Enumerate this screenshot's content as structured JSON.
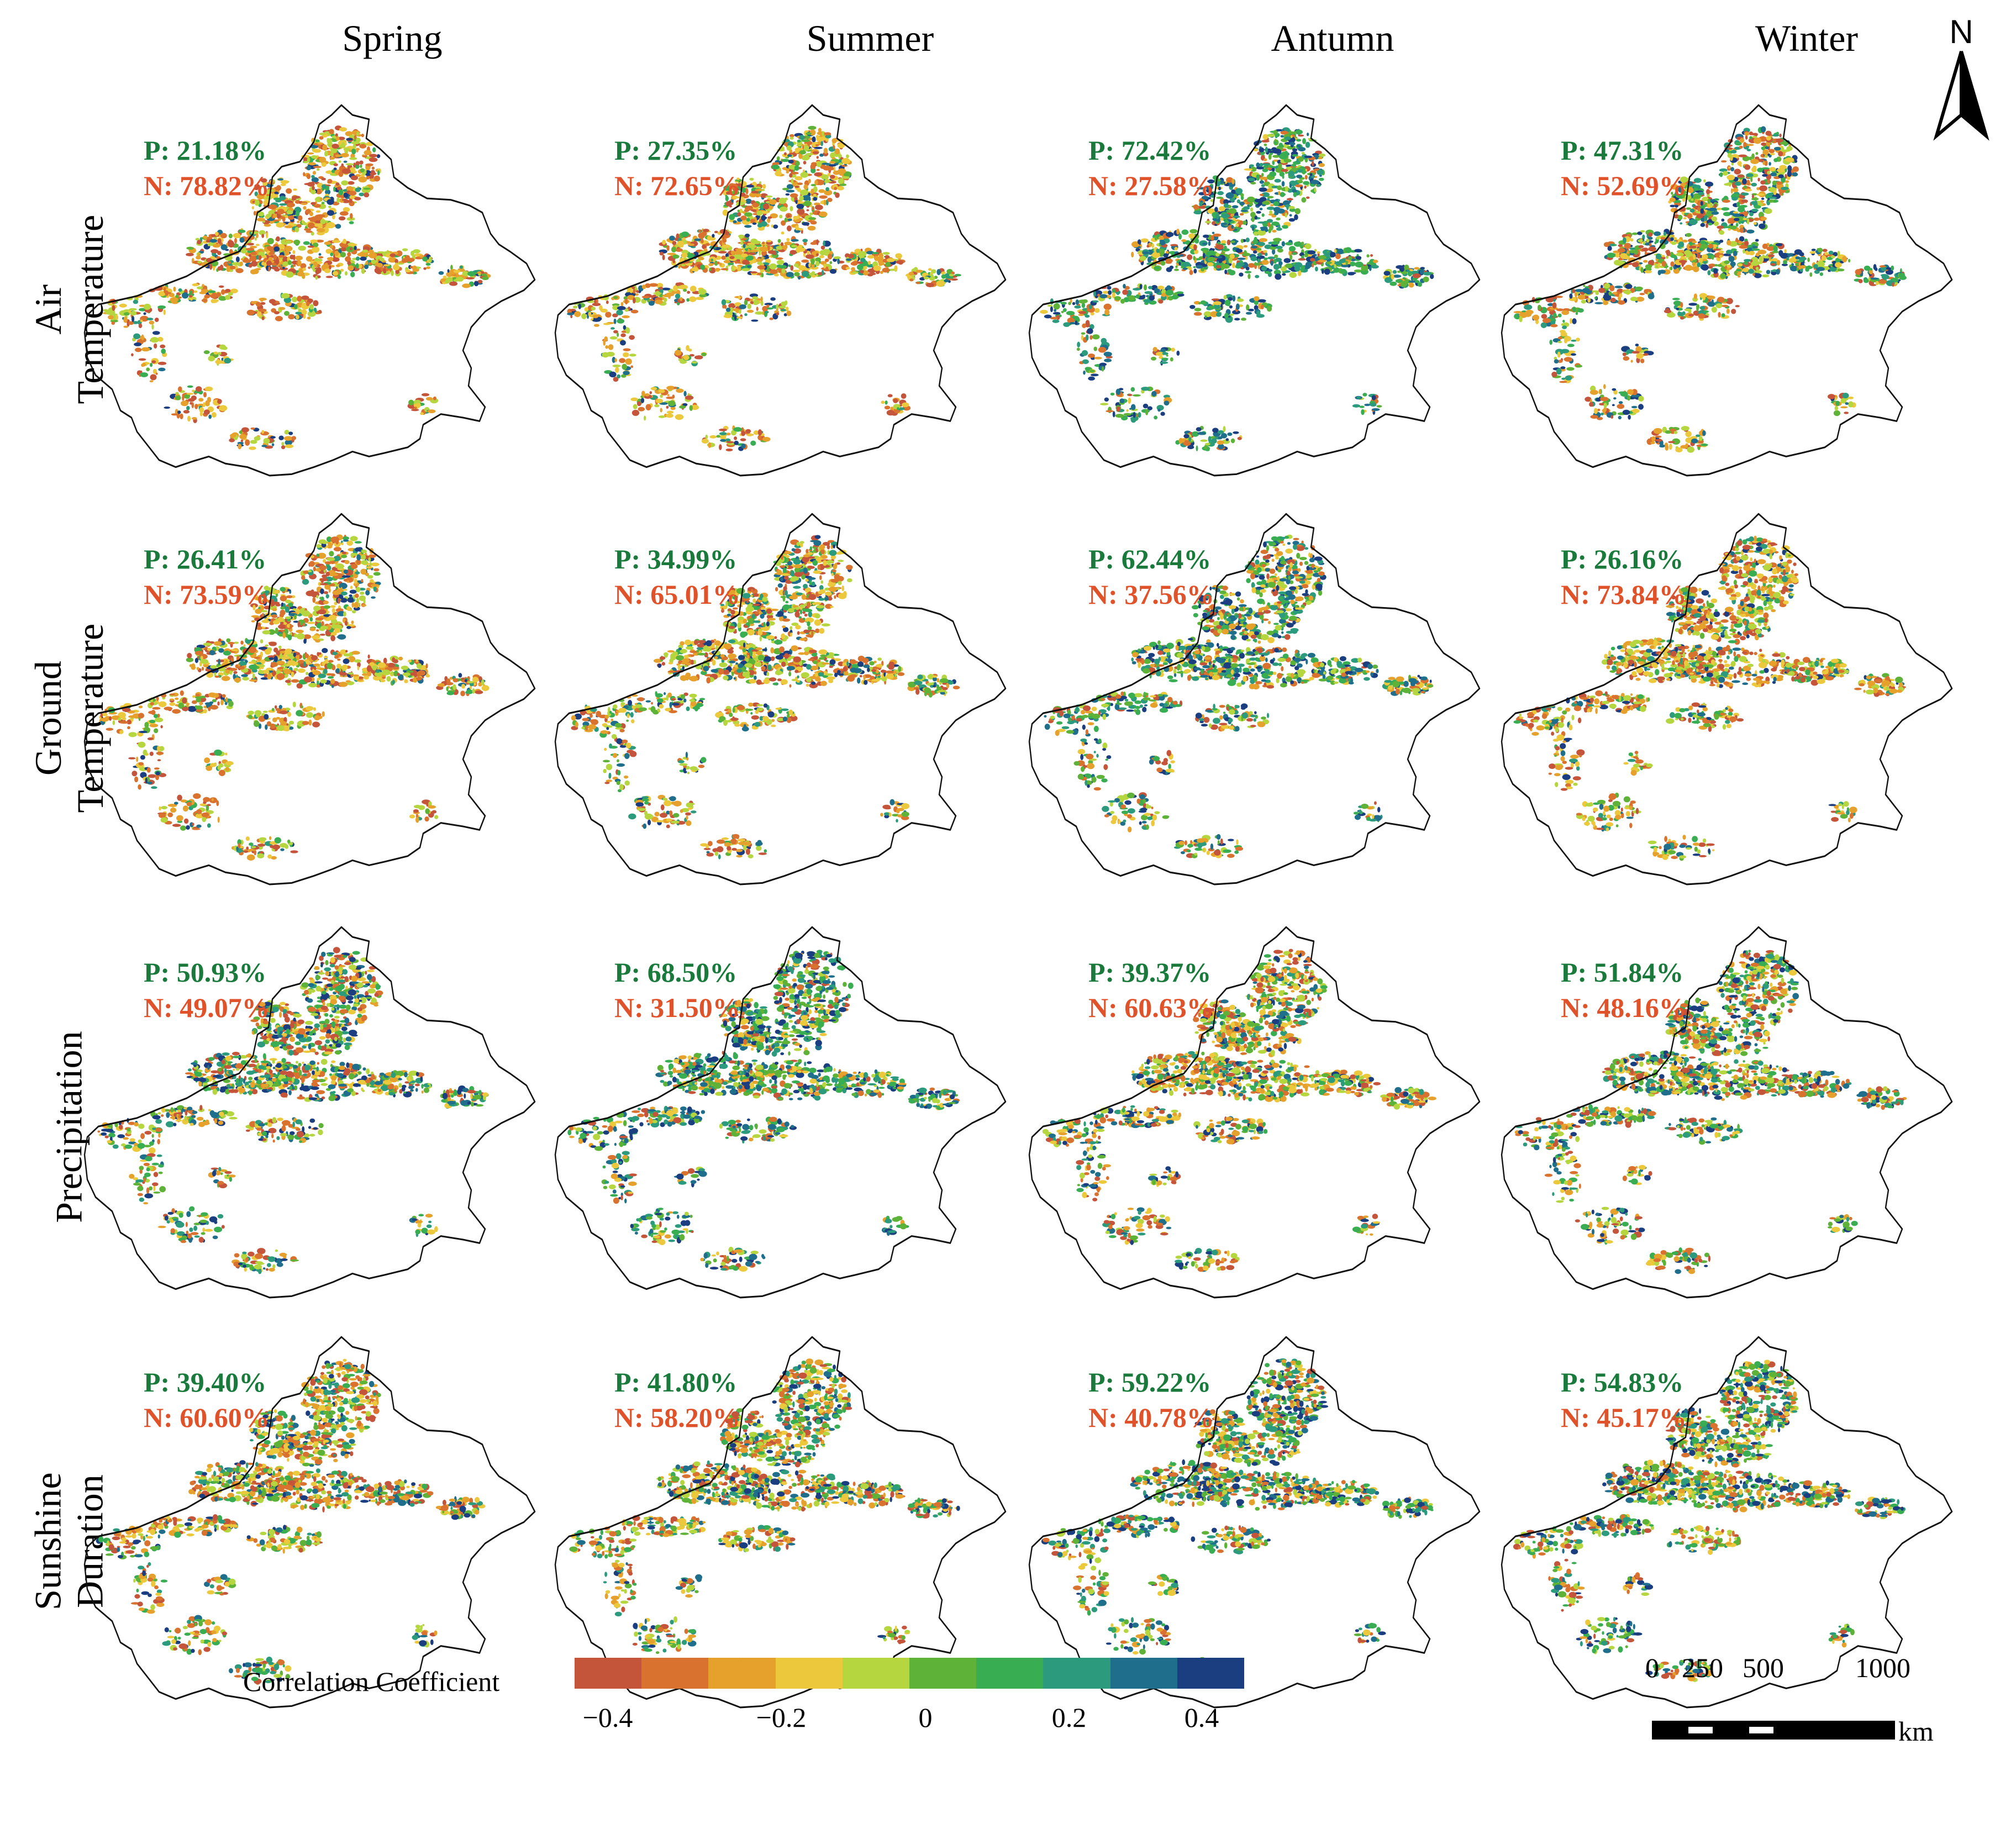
{
  "columns": [
    "Spring",
    "Summer",
    "Antumn",
    "Winter"
  ],
  "rows": [
    {
      "label_lines": [
        "Air",
        "Temperature"
      ]
    },
    {
      "label_lines": [
        "Ground",
        "Temperature"
      ]
    },
    {
      "label_lines": [
        "Precipitation"
      ]
    },
    {
      "label_lines": [
        "Sunshine",
        "Duration"
      ]
    }
  ],
  "panels": [
    [
      {
        "p": "P: 21.18%",
        "n": "N: 78.82%"
      },
      {
        "p": "P: 27.35%",
        "n": "N: 72.65%"
      },
      {
        "p": "P: 72.42%",
        "n": "N: 27.58%"
      },
      {
        "p": "P: 47.31%",
        "n": "N: 52.69%"
      }
    ],
    [
      {
        "p": "P: 26.41%",
        "n": "N: 73.59%"
      },
      {
        "p": "P: 34.99%",
        "n": "N: 65.01%"
      },
      {
        "p": "P: 62.44%",
        "n": "N: 37.56%"
      },
      {
        "p": "P: 26.16%",
        "n": "N: 73.84%"
      }
    ],
    [
      {
        "p": "P: 50.93%",
        "n": "N: 49.07%"
      },
      {
        "p": "P: 68.50%",
        "n": "N: 31.50%"
      },
      {
        "p": "P: 39.37%",
        "n": "N: 60.63%"
      },
      {
        "p": "P: 51.84%",
        "n": "N: 48.16%"
      }
    ],
    [
      {
        "p": "P: 39.40%",
        "n": "N: 60.60%"
      },
      {
        "p": "P: 41.80%",
        "n": "N: 58.20%"
      },
      {
        "p": "P: 59.22%",
        "n": "N: 40.78%"
      },
      {
        "p": "P: 54.83%",
        "n": "N: 45.17%"
      }
    ]
  ],
  "north_arrow": {
    "label": "N"
  },
  "colorbar": {
    "title": "Correlation Coefficient",
    "colors": [
      "#c4543a",
      "#d8722e",
      "#e6a02c",
      "#ecc83c",
      "#b6d640",
      "#5db237",
      "#39ad52",
      "#2c9a7c",
      "#1f6e8c",
      "#1a3e80"
    ],
    "ticks": [
      "−0.4",
      "−0.2",
      "0",
      "0.2",
      "0.4"
    ]
  },
  "scale_bar": {
    "labels": [
      "0",
      "250",
      "500",
      "1000"
    ],
    "unit": "km"
  }
}
